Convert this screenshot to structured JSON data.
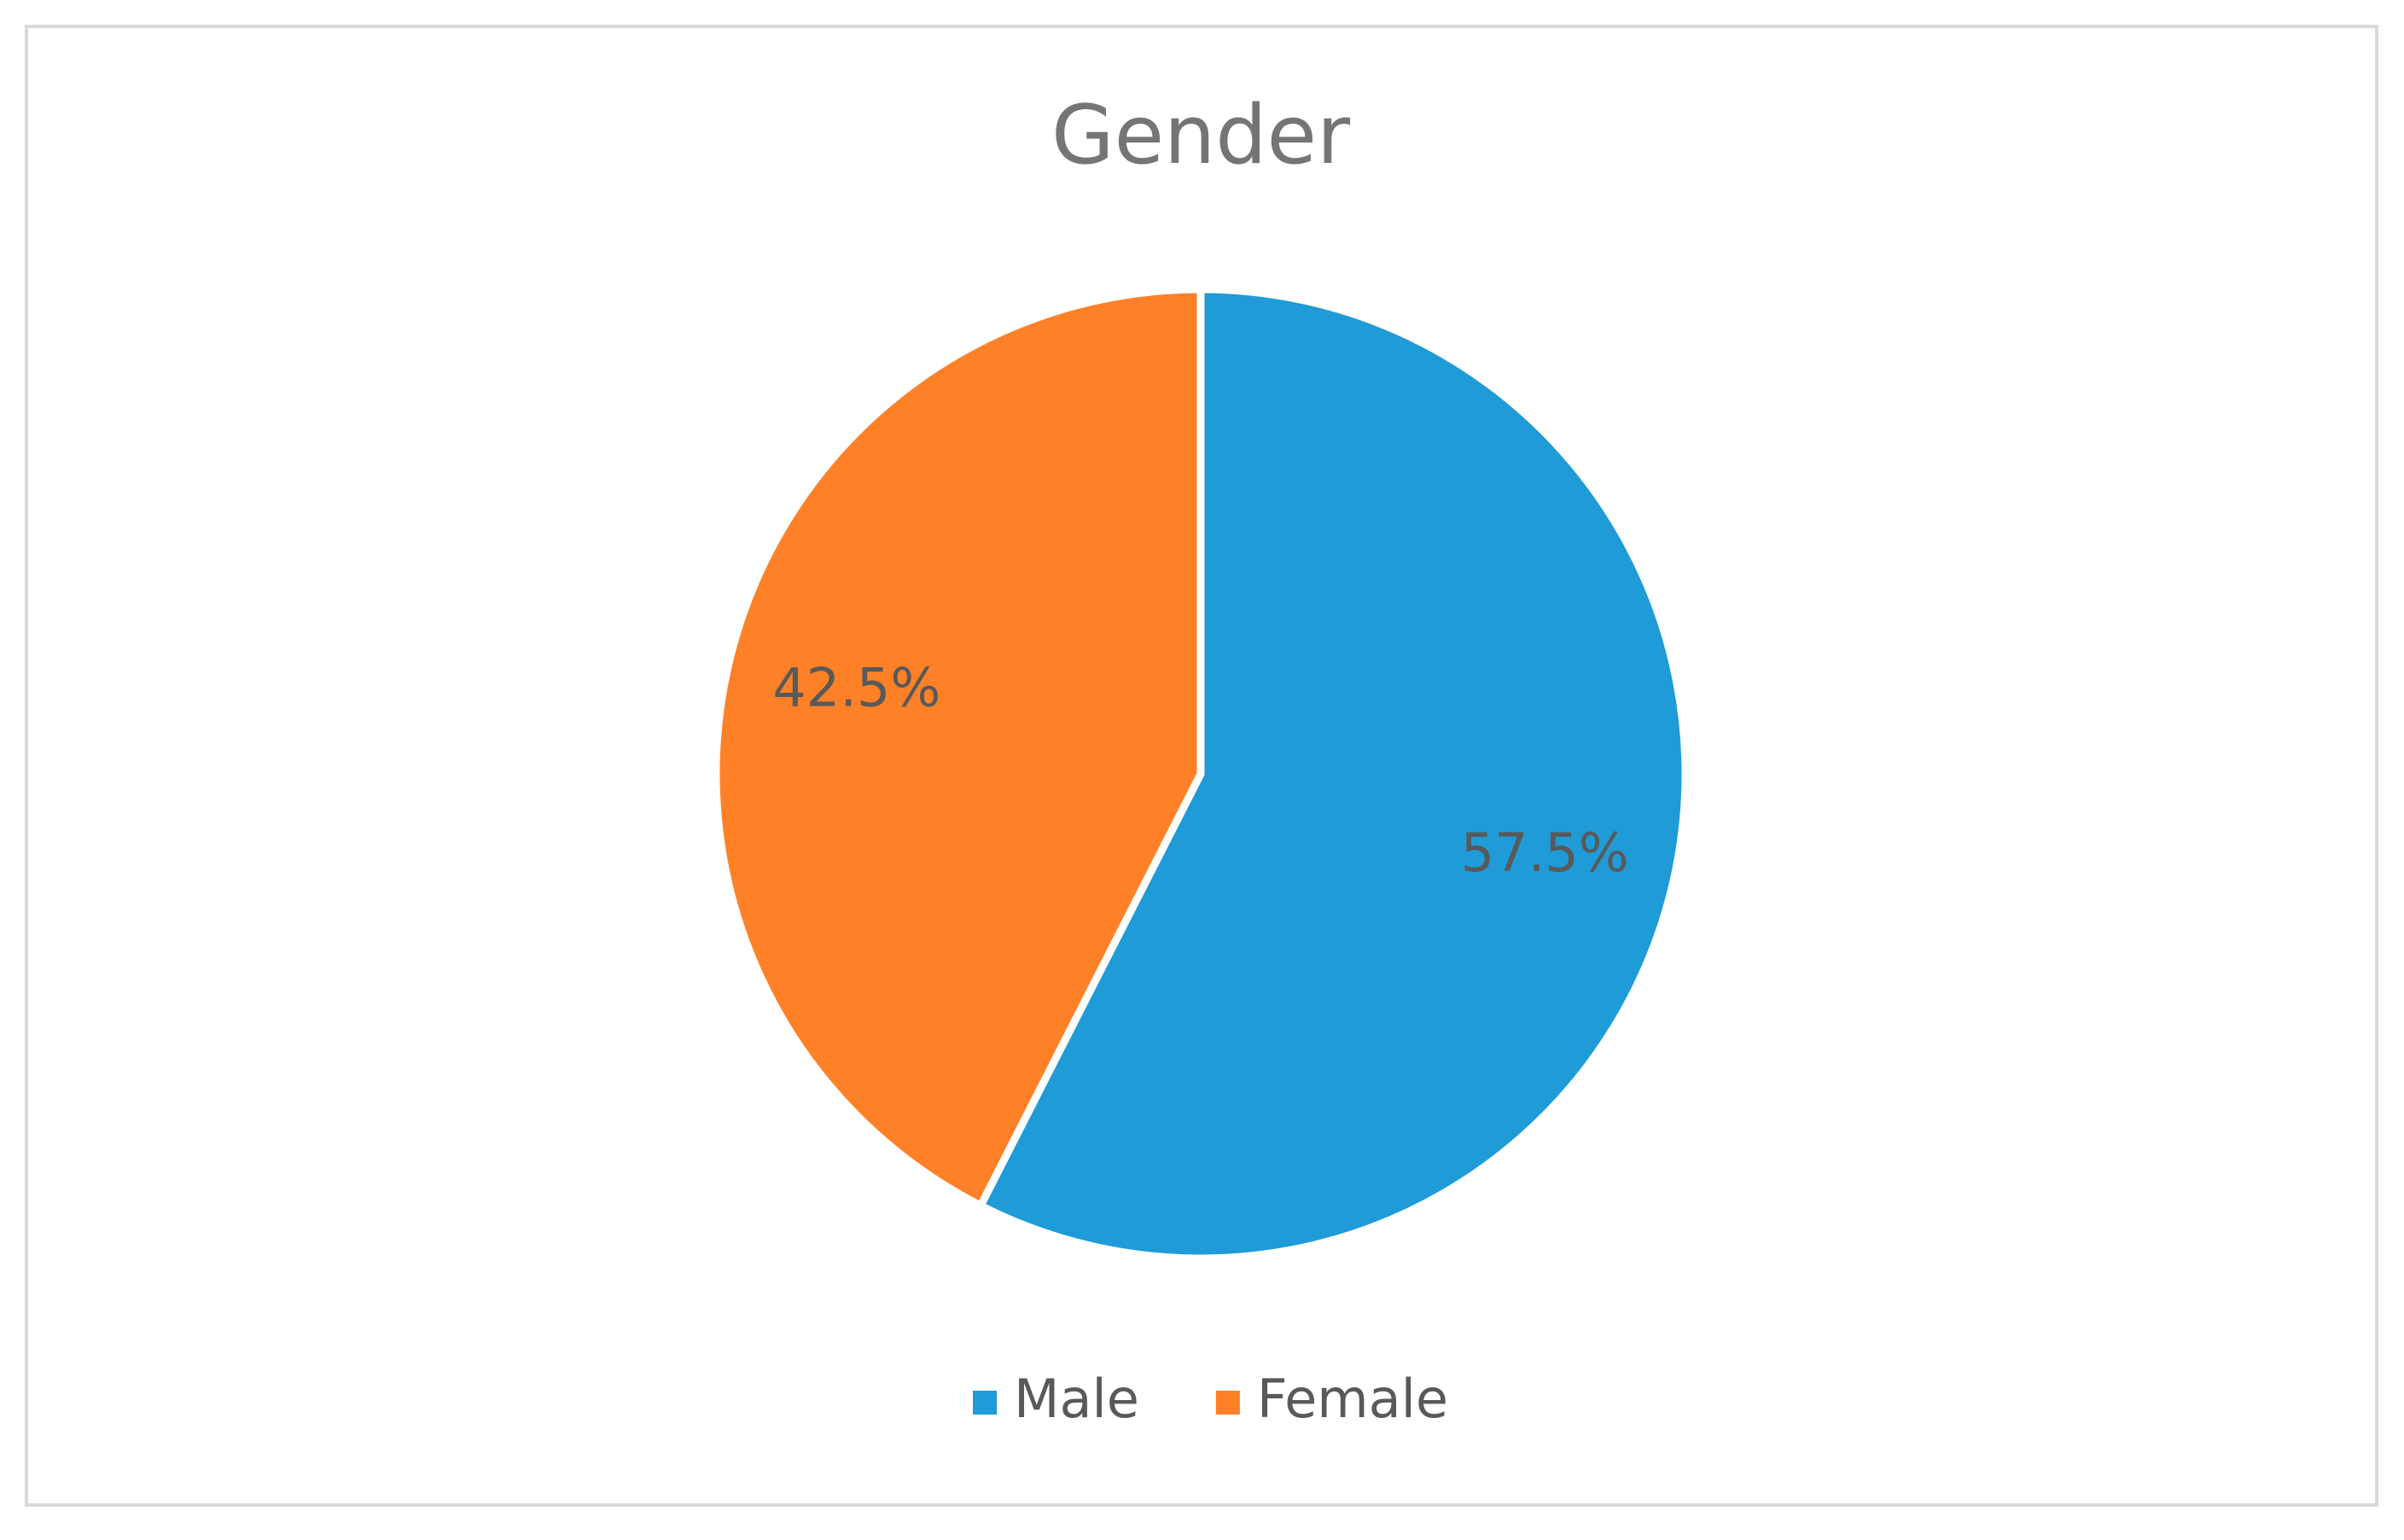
{
  "chart_data": {
    "type": "pie",
    "title": "Gender",
    "categories": [
      "Male",
      "Female"
    ],
    "values": [
      57.5,
      42.5
    ],
    "value_labels": [
      "57.5%",
      "42.5%"
    ],
    "colors": [
      "#1f9bd7",
      "#fe8127"
    ],
    "legend": "bottom"
  }
}
